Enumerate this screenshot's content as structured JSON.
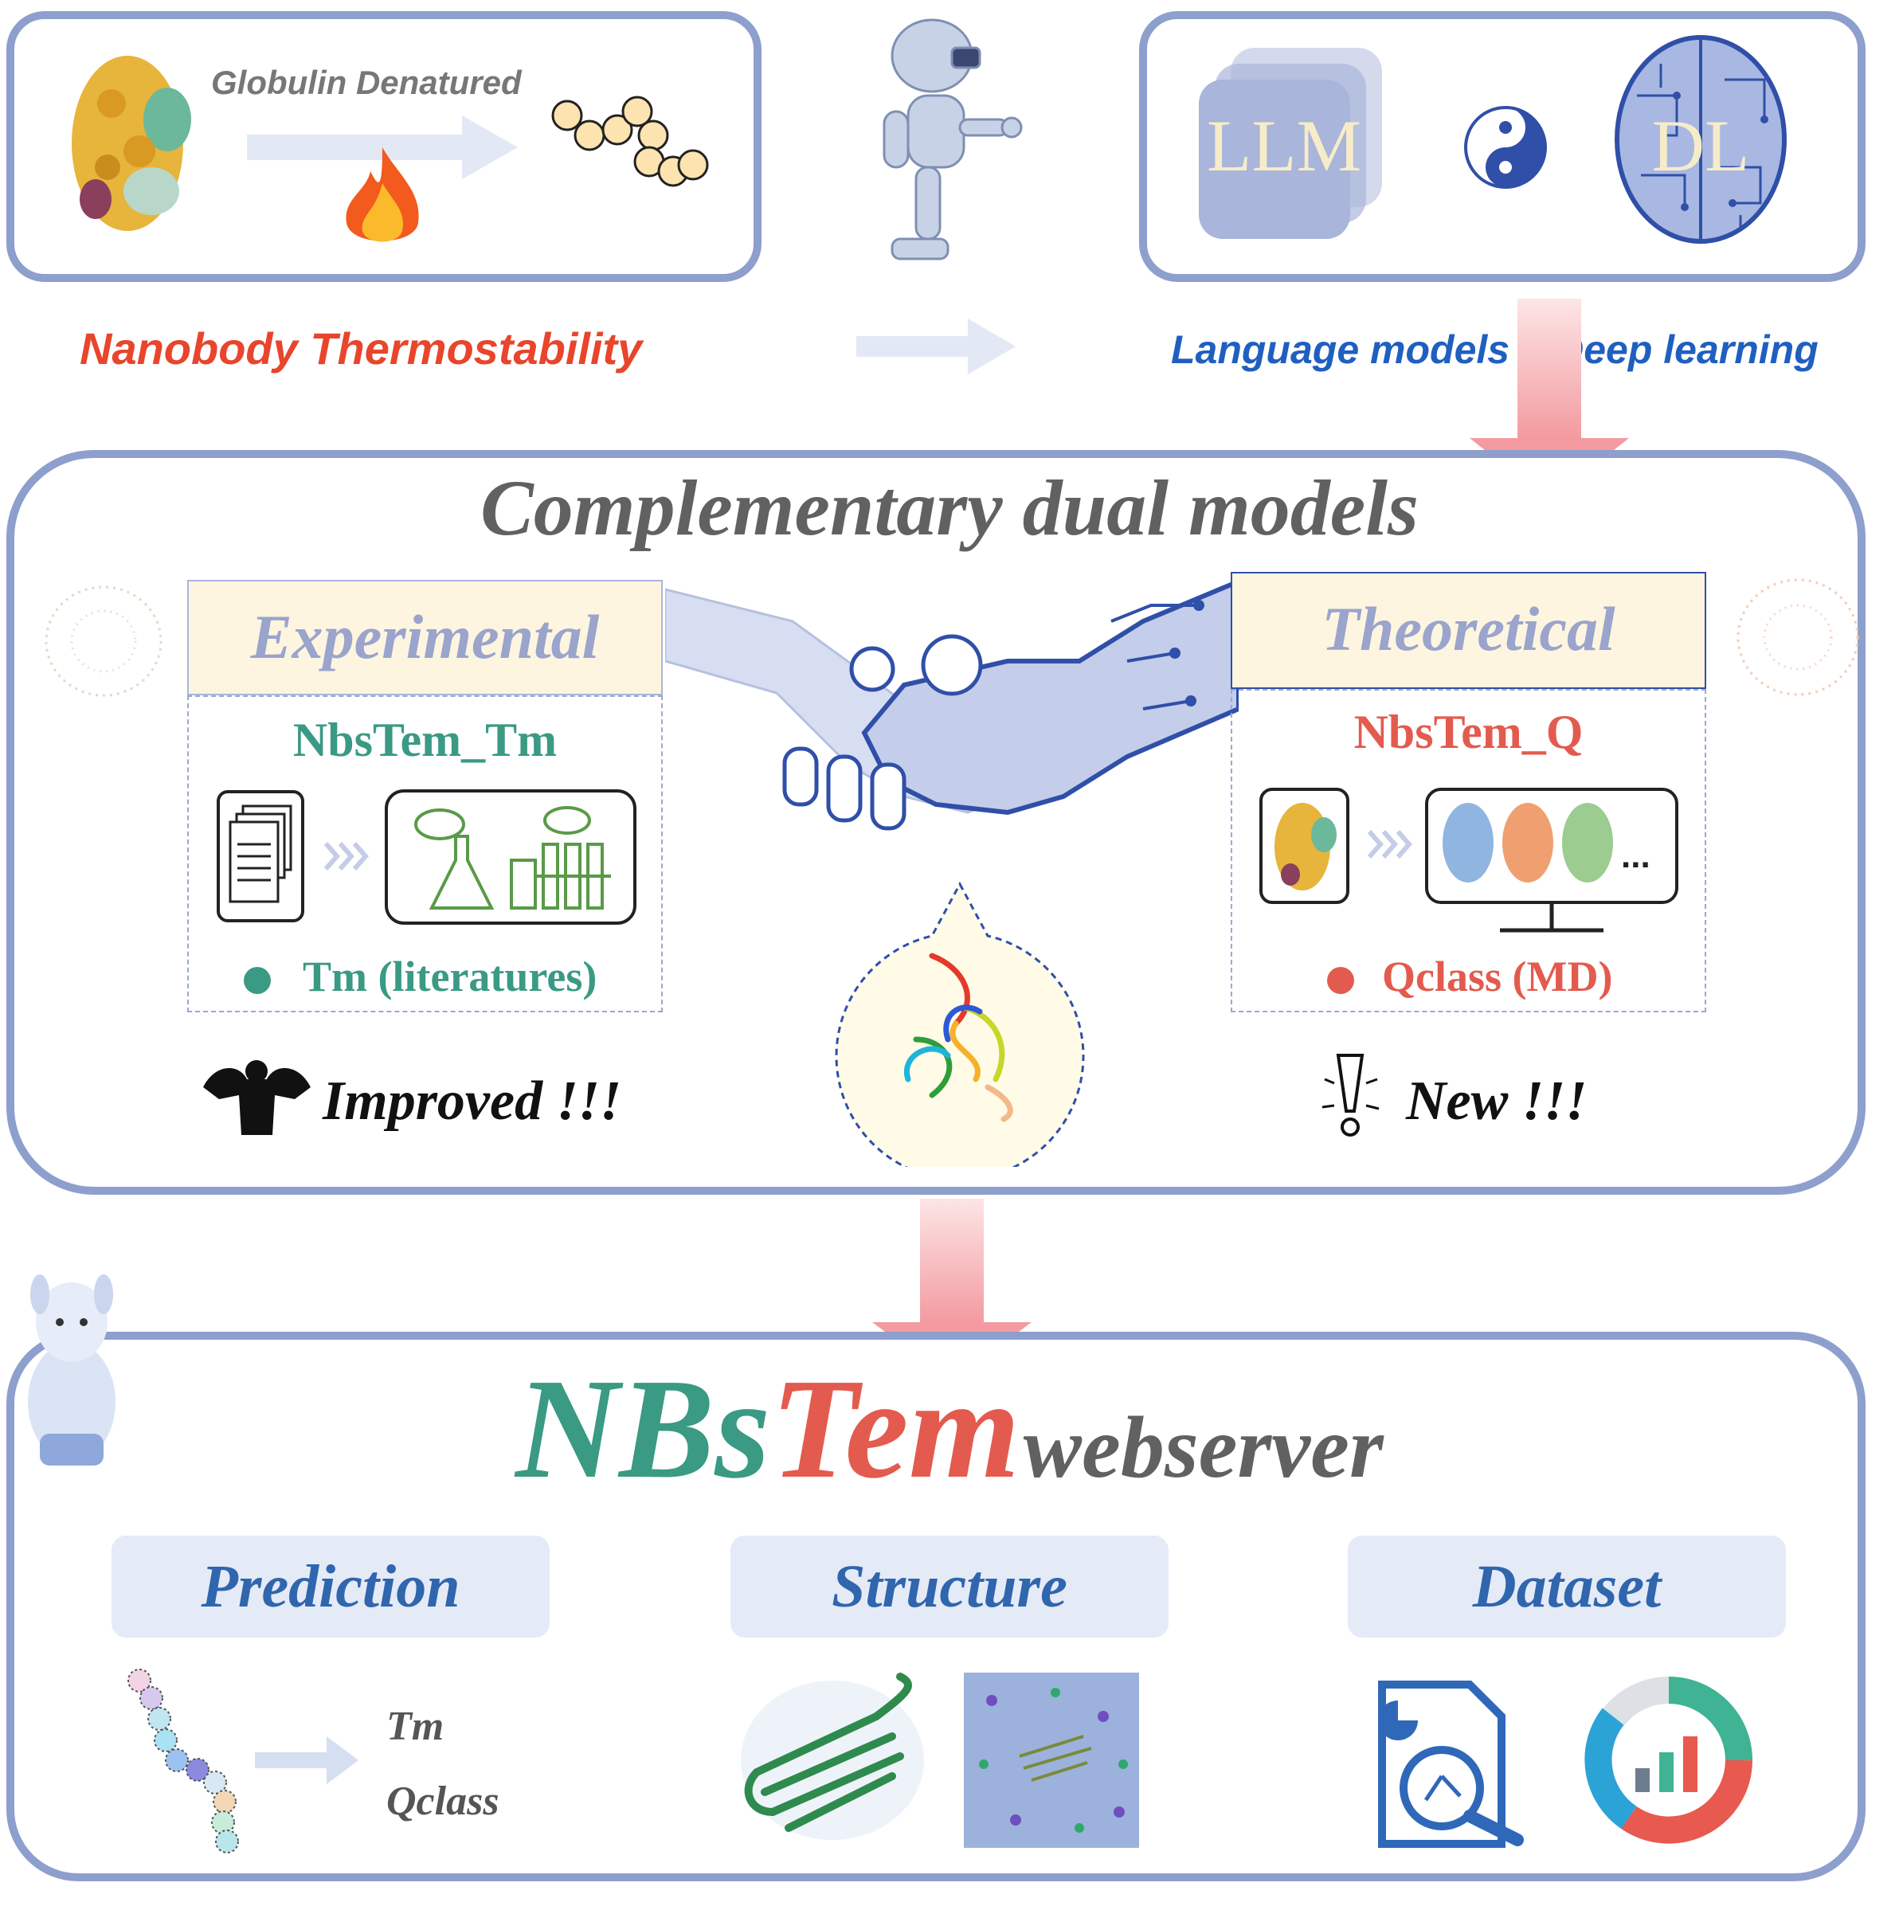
{
  "top_left": {
    "process_label": "Globulin Denatured",
    "caption": "Nanobody Thermostability"
  },
  "top_right": {
    "llm_label": "LLM",
    "dl_label": "DL",
    "caption_part1": "Language models",
    "caption_plus": "+",
    "caption_part2": "Deep learning"
  },
  "middle": {
    "title": "Complementary dual models",
    "experimental": {
      "header": "Experimental",
      "model_name": "NbsTem_Tm",
      "bullet": "Tm (literatures)",
      "tagline": "Improved !!!"
    },
    "theoretical": {
      "header": "Theoretical",
      "model_name": "NbsTem_Q",
      "bullet": "Qclass (MD)",
      "tagline": "New !!!",
      "ellipsis": "..."
    }
  },
  "bottom": {
    "title_part1": "NBs",
    "title_part2": "Tem",
    "title_part3": "webserver",
    "tabs": [
      {
        "label": "Prediction"
      },
      {
        "label": "Structure"
      },
      {
        "label": "Dataset"
      }
    ],
    "prediction_outputs": [
      "Tm",
      "Qclass"
    ]
  },
  "colors": {
    "panel_border": "#8d9fcc",
    "red_accent": "#e8452c",
    "blue_accent": "#1f5fc0",
    "teal": "#3a9a84",
    "salmon": "#e35b4e",
    "pink_arrow": "#f4a3a8"
  }
}
